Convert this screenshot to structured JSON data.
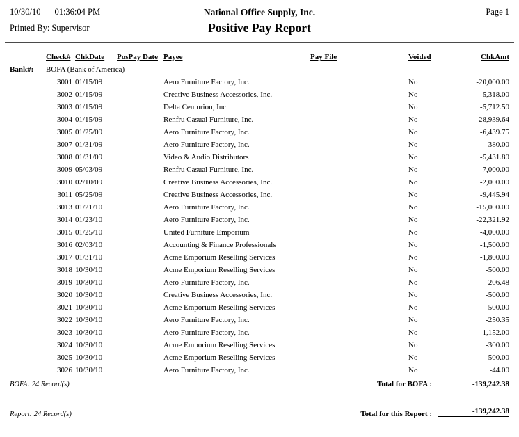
{
  "header": {
    "date": "10/30/10",
    "time": "01:36:04 PM",
    "company": "National Office Supply, Inc.",
    "page": "Page 1",
    "printed_by_label": "Printed By:",
    "printed_by_value": "Supervisor",
    "title": "Positive Pay Report"
  },
  "table": {
    "columns": [
      "Check#",
      "ChkDate",
      "PosPay Date",
      "Payee",
      "Pay File",
      "Voided",
      "ChkAmt"
    ],
    "bank_label": "Bank#:",
    "bank_name": "BOFA (Bank of America)",
    "rows": [
      {
        "check": "3001",
        "chkdate": "01/15/09",
        "pospay": "",
        "payee": "Aero Furniture Factory, Inc.",
        "payfile": "",
        "voided": "No",
        "amount": "-20,000.00"
      },
      {
        "check": "3002",
        "chkdate": "01/15/09",
        "pospay": "",
        "payee": "Creative Business Accessories, Inc.",
        "payfile": "",
        "voided": "No",
        "amount": "-5,318.00"
      },
      {
        "check": "3003",
        "chkdate": "01/15/09",
        "pospay": "",
        "payee": "Delta Centurion, Inc.",
        "payfile": "",
        "voided": "No",
        "amount": "-5,712.50"
      },
      {
        "check": "3004",
        "chkdate": "01/15/09",
        "pospay": "",
        "payee": "Renfru Casual Furniture, Inc.",
        "payfile": "",
        "voided": "No",
        "amount": "-28,939.64"
      },
      {
        "check": "3005",
        "chkdate": "01/25/09",
        "pospay": "",
        "payee": "Aero Furniture Factory, Inc.",
        "payfile": "",
        "voided": "No",
        "amount": "-6,439.75"
      },
      {
        "check": "3007",
        "chkdate": "01/31/09",
        "pospay": "",
        "payee": "Aero Furniture Factory, Inc.",
        "payfile": "",
        "voided": "No",
        "amount": "-380.00"
      },
      {
        "check": "3008",
        "chkdate": "01/31/09",
        "pospay": "",
        "payee": "Video & Audio Distributors",
        "payfile": "",
        "voided": "No",
        "amount": "-5,431.80"
      },
      {
        "check": "3009",
        "chkdate": "05/03/09",
        "pospay": "",
        "payee": "Renfru Casual Furniture, Inc.",
        "payfile": "",
        "voided": "No",
        "amount": "-7,000.00"
      },
      {
        "check": "3010",
        "chkdate": "02/10/09",
        "pospay": "",
        "payee": "Creative Business Accessories, Inc.",
        "payfile": "",
        "voided": "No",
        "amount": "-2,000.00"
      },
      {
        "check": "3011",
        "chkdate": "05/25/09",
        "pospay": "",
        "payee": "Creative Business Accessories, Inc.",
        "payfile": "",
        "voided": "No",
        "amount": "-9,445.94"
      },
      {
        "check": "3013",
        "chkdate": "01/21/10",
        "pospay": "",
        "payee": "Aero Furniture Factory, Inc.",
        "payfile": "",
        "voided": "No",
        "amount": "-15,000.00"
      },
      {
        "check": "3014",
        "chkdate": "01/23/10",
        "pospay": "",
        "payee": "Aero Furniture Factory, Inc.",
        "payfile": "",
        "voided": "No",
        "amount": "-22,321.92"
      },
      {
        "check": "3015",
        "chkdate": "01/25/10",
        "pospay": "",
        "payee": "United Furniture Emporium",
        "payfile": "",
        "voided": "No",
        "amount": "-4,000.00"
      },
      {
        "check": "3016",
        "chkdate": "02/03/10",
        "pospay": "",
        "payee": "Accounting & Finance Professionals",
        "payfile": "",
        "voided": "No",
        "amount": "-1,500.00"
      },
      {
        "check": "3017",
        "chkdate": "01/31/10",
        "pospay": "",
        "payee": "Acme Emporium Reselling Services",
        "payfile": "",
        "voided": "No",
        "amount": "-1,800.00"
      },
      {
        "check": "3018",
        "chkdate": "10/30/10",
        "pospay": "",
        "payee": "Acme Emporium Reselling Services",
        "payfile": "",
        "voided": "No",
        "amount": "-500.00"
      },
      {
        "check": "3019",
        "chkdate": "10/30/10",
        "pospay": "",
        "payee": "Aero Furniture Factory, Inc.",
        "payfile": "",
        "voided": "No",
        "amount": "-206.48"
      },
      {
        "check": "3020",
        "chkdate": "10/30/10",
        "pospay": "",
        "payee": "Creative Business Accessories, Inc.",
        "payfile": "",
        "voided": "No",
        "amount": "-500.00"
      },
      {
        "check": "3021",
        "chkdate": "10/30/10",
        "pospay": "",
        "payee": "Acme Emporium Reselling Services",
        "payfile": "",
        "voided": "No",
        "amount": "-500.00"
      },
      {
        "check": "3022",
        "chkdate": "10/30/10",
        "pospay": "",
        "payee": "Aero Furniture Factory, Inc.",
        "payfile": "",
        "voided": "No",
        "amount": "-250.35"
      },
      {
        "check": "3023",
        "chkdate": "10/30/10",
        "pospay": "",
        "payee": "Aero Furniture Factory, Inc.",
        "payfile": "",
        "voided": "No",
        "amount": "-1,152.00"
      },
      {
        "check": "3024",
        "chkdate": "10/30/10",
        "pospay": "",
        "payee": "Acme Emporium Reselling Services",
        "payfile": "",
        "voided": "No",
        "amount": "-300.00"
      },
      {
        "check": "3025",
        "chkdate": "10/30/10",
        "pospay": "",
        "payee": "Acme Emporium Reselling Services",
        "payfile": "",
        "voided": "No",
        "amount": "-500.00"
      },
      {
        "check": "3026",
        "chkdate": "10/30/10",
        "pospay": "",
        "payee": "Aero Furniture Factory, Inc.",
        "payfile": "",
        "voided": "No",
        "amount": "-44.00"
      }
    ]
  },
  "footer": {
    "bank_records": "BOFA: 24 Record(s)",
    "bank_total_label": "Total for BOFA :",
    "bank_total": "-139,242.38",
    "report_records": "Report: 24 Record(s)",
    "report_total_label": "Total for this Report :",
    "report_total": "-139,242.38"
  }
}
